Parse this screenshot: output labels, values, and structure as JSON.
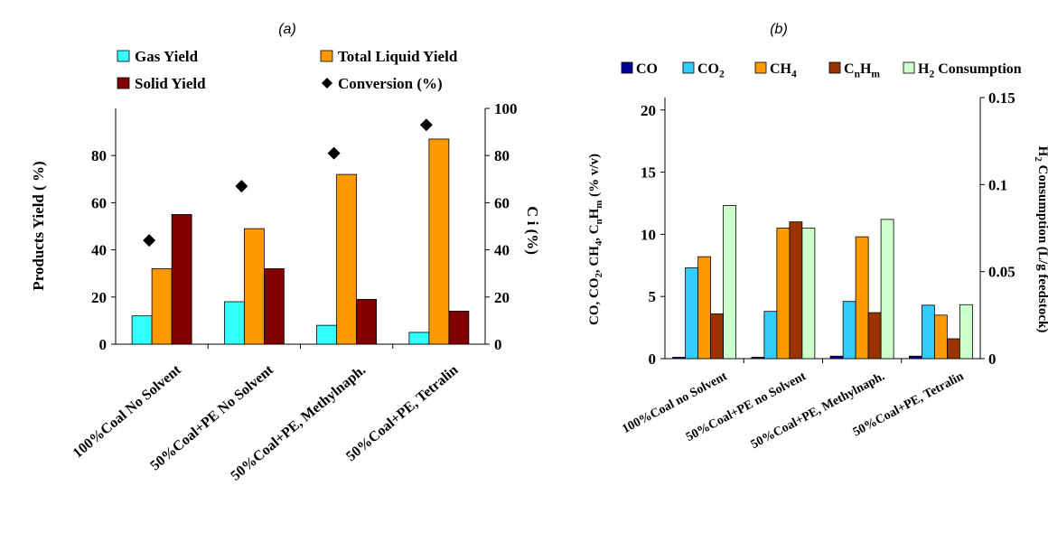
{
  "charts": [
    {
      "panel_label": "(a)",
      "type": "bar+scatter",
      "categories": [
        "100%Coal No Solvent",
        "50%Coal+PE No Solvent",
        "50%Coal+PE, Methylnaph.",
        "50%Coal+PE, Tetralin"
      ],
      "ylabel": "Products  Yield ( %)",
      "ylabel2": "C     i     (%)",
      "ylim": [
        0,
        100
      ],
      "ylim2": [
        0,
        100
      ],
      "yticks": [
        "0",
        "20",
        "40",
        "60",
        "80"
      ],
      "yticks2": [
        "0",
        "20",
        "40",
        "60",
        "80",
        "100"
      ],
      "legend": [
        {
          "name": "Gas Yield",
          "marker": "square",
          "color": "#33ffff"
        },
        {
          "name": "Total Liquid Yield",
          "marker": "square",
          "color": "#ff9900"
        },
        {
          "name": "Solid Yield",
          "marker": "square",
          "color": "#800000"
        },
        {
          "name": "Conversion (%)",
          "marker": "diamond",
          "color": "#000000"
        }
      ],
      "series": [
        {
          "name": "Gas Yield",
          "color": "#33ffff",
          "axis": "left",
          "values": [
            12,
            18,
            8,
            5
          ]
        },
        {
          "name": "Total Liquid Yield",
          "color": "#ff9900",
          "axis": "left",
          "values": [
            32,
            49,
            72,
            87
          ]
        },
        {
          "name": "Solid Yield",
          "color": "#800000",
          "axis": "left",
          "values": [
            55,
            32,
            19,
            14
          ]
        }
      ],
      "markers": {
        "name": "Conversion (%)",
        "axis": "right",
        "values": [
          44,
          67,
          81,
          93
        ]
      }
    },
    {
      "panel_label": "(b)",
      "type": "bar",
      "categories": [
        "100%Coal no Solvent",
        "50%Coal+PE no Solvent",
        "50%Coal+PE, Methylnaph.",
        "50%Coal+PE, Tetralin"
      ],
      "ylabel": "CO, CO2, CH4, CnHm (% v/v)",
      "ylabel2": "H2 Consumption (L/g feedstock)",
      "ylim": [
        0,
        21
      ],
      "ylim2": [
        0,
        0.15
      ],
      "yticks": [
        "0",
        "5",
        "10",
        "15",
        "20"
      ],
      "yticks2": [
        "0",
        "0.05",
        "0.1",
        "0.15"
      ],
      "legend": [
        {
          "name": "CO",
          "color": "#000099"
        },
        {
          "name": "CO2",
          "color": "#33ccff"
        },
        {
          "name": "CH4",
          "color": "#ff9900"
        },
        {
          "name": "CnHm",
          "color": "#993300"
        },
        {
          "name": "H2 Consumption",
          "color": "#ccffcc"
        }
      ],
      "series": [
        {
          "name": "CO",
          "color": "#000099",
          "axis": "left",
          "values": [
            0.05,
            0.1,
            0.2,
            0.2
          ]
        },
        {
          "name": "CO2",
          "color": "#33ccff",
          "axis": "left",
          "values": [
            7.3,
            3.8,
            4.6,
            4.3
          ]
        },
        {
          "name": "CH4",
          "color": "#ff9900",
          "axis": "left",
          "values": [
            8.2,
            10.5,
            9.8,
            3.5
          ]
        },
        {
          "name": "CnHm",
          "color": "#993300",
          "axis": "left",
          "values": [
            3.6,
            11.0,
            3.7,
            1.6
          ]
        },
        {
          "name": "H2 Consumption",
          "color": "#ccffcc",
          "axis": "right",
          "values": [
            0.088,
            0.075,
            0.08,
            0.031
          ]
        }
      ]
    }
  ]
}
